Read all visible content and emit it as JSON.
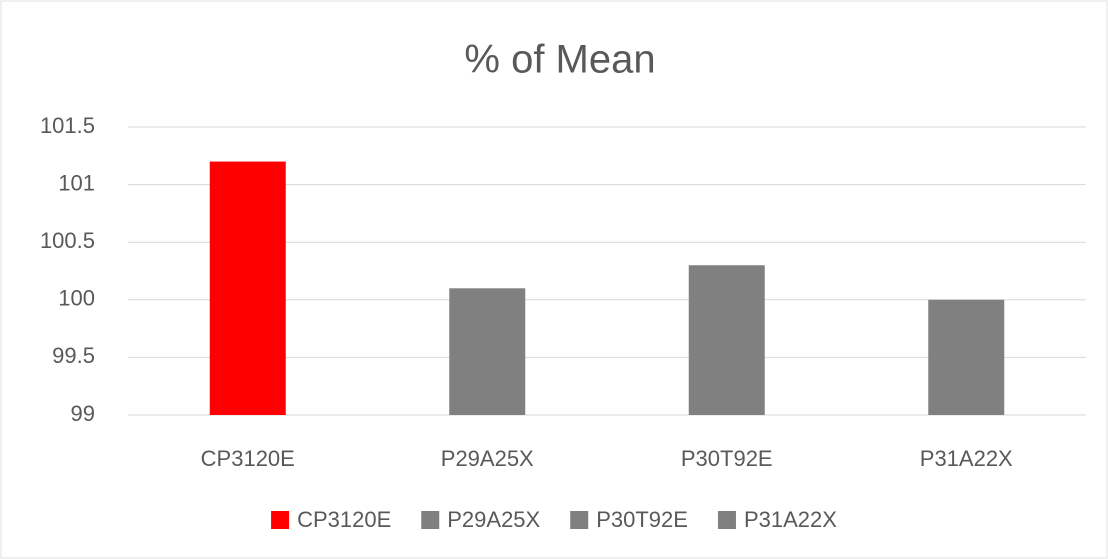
{
  "chart_data": {
    "type": "bar",
    "title": "% of Mean",
    "categories": [
      "CP3120E",
      "P29A25X",
      "P30T92E",
      "P31A22X"
    ],
    "values": [
      101.2,
      100.1,
      100.3,
      100.0
    ],
    "colors": [
      "#ff0000",
      "#808080",
      "#808080",
      "#808080"
    ],
    "ylim": [
      99,
      101.5
    ],
    "yticks": [
      99,
      99.5,
      100,
      100.5,
      101,
      101.5
    ],
    "grid": true,
    "legend": "bottom"
  }
}
